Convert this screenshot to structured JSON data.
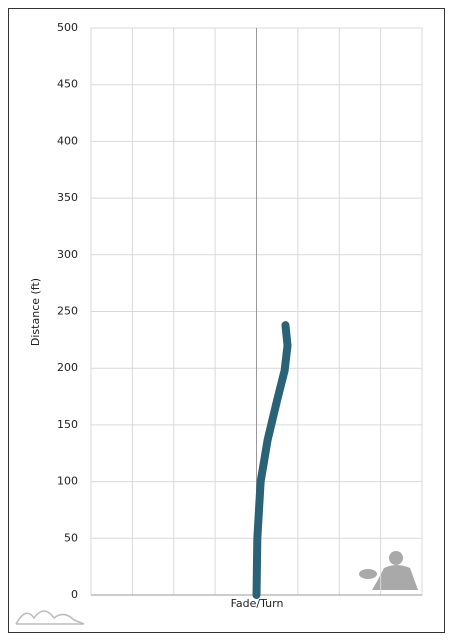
{
  "chart_data": {
    "type": "line",
    "x_label": "Fade/Turn",
    "y_label": "Distance (ft)",
    "x": [
      0,
      0.02,
      0.1,
      0.27,
      0.5,
      0.68,
      0.75,
      0.7
    ],
    "series": [
      {
        "color": "#2a6278",
        "values": [
          0,
          50,
          100,
          137,
          172,
          198,
          220,
          238
        ]
      }
    ],
    "xlim": [
      -4,
      4
    ],
    "xticks": [
      -4,
      -3,
      -2,
      -1,
      0,
      1,
      2,
      3,
      4
    ],
    "xtick_labels": false,
    "ylim": [
      0,
      500
    ],
    "yticks": [
      0,
      50,
      100,
      150,
      200,
      250,
      300,
      350,
      400,
      450,
      500
    ],
    "grid": true
  }
}
